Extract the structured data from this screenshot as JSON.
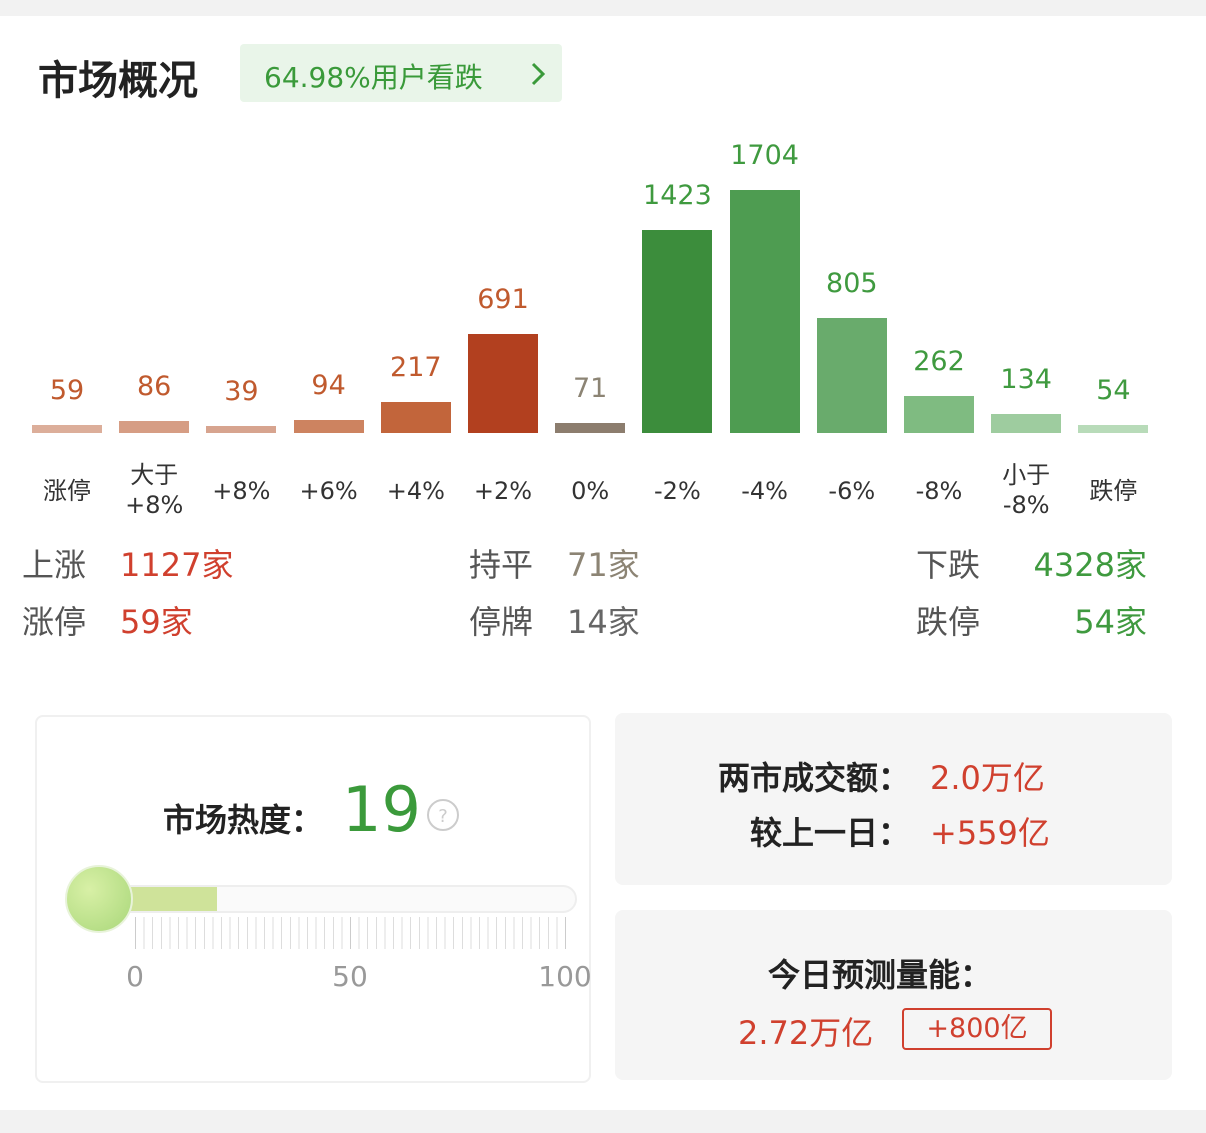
{
  "header": {
    "title": "市场概况",
    "badge": "64.98%用户看跌"
  },
  "chart_data": {
    "type": "bar",
    "categories": [
      "涨停",
      "大于\n+8%",
      "+8%",
      "+6%",
      "+4%",
      "+2%",
      "0%",
      "-2%",
      "-4%",
      "-6%",
      "-8%",
      "小于\n-8%",
      "跌停"
    ],
    "values": [
      59,
      86,
      39,
      94,
      217,
      691,
      71,
      1423,
      1704,
      805,
      262,
      134,
      54
    ],
    "colors": [
      "#dcae9a",
      "#d69d84",
      "#d7a48f",
      "#cd8360",
      "#c2653b",
      "#b2401f",
      "#8c7d6e",
      "#3c8d3c",
      "#4e9c51",
      "#69ab6c",
      "#7fbb81",
      "#9ecc9f",
      "#b8dbb9"
    ],
    "label_colors": [
      "#c05a2e",
      "#c05a2e",
      "#c05a2e",
      "#c05a2e",
      "#c05a2e",
      "#c05a2e",
      "#8c8474",
      "#3f9a3f",
      "#3f9a3f",
      "#3f9a3f",
      "#3f9a3f",
      "#3f9a3f",
      "#3f9a3f"
    ]
  },
  "stats": [
    [
      {
        "label": "上涨",
        "value": "1127家",
        "color": "#d0402e"
      },
      {
        "label": "持平",
        "value": "71家",
        "color": "#8c8474"
      },
      {
        "label": "下跌",
        "value": "4328家",
        "color": "#3f9a3f"
      }
    ],
    [
      {
        "label": "涨停",
        "value": "59家",
        "color": "#d0402e"
      },
      {
        "label": "停牌",
        "value": "14家",
        "color": "#666"
      },
      {
        "label": "跌停",
        "value": "54家",
        "color": "#3f9a3f"
      }
    ]
  ],
  "heat": {
    "label": "市场热度：",
    "value": 19,
    "min": 0,
    "max": 100,
    "ticks": [
      0,
      50,
      100
    ]
  },
  "turnover": {
    "label": "两市成交额：",
    "value": "2.0万亿",
    "change_label": "较上一日：",
    "change": "+559亿"
  },
  "forecast": {
    "label": "今日预测量能：",
    "value": "2.72万亿",
    "change": "+800亿"
  }
}
